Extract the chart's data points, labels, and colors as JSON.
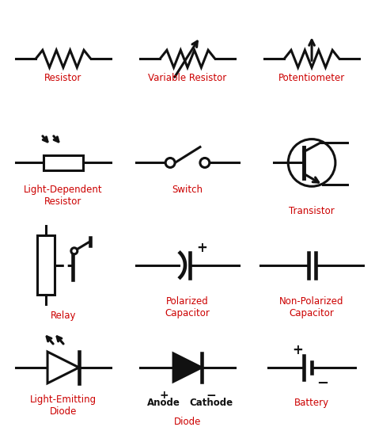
{
  "background_color": "#ffffff",
  "symbol_color": "#111111",
  "label_color": "#cc0000",
  "label_fontsize": 8.5,
  "figsize": [
    4.74,
    5.63
  ],
  "dpi": 100,
  "grid": {
    "cols": [
      79,
      237,
      395
    ],
    "rows": [
      490,
      358,
      228,
      98
    ]
  },
  "labels": {
    "resistor": "Resistor",
    "variable_resistor": "Variable Resistor",
    "potentiometer": "Potentiometer",
    "ldr": "Light-Dependent\nResistor",
    "switch": "Switch",
    "transistor": "Transistor",
    "relay": "Relay",
    "pol_cap": "Polarized\nCapacitor",
    "nonpol_cap": "Non-Polarized\nCapacitor",
    "led": "Light-Emitting\nDiode",
    "diode": "Diode",
    "battery": "Battery"
  }
}
